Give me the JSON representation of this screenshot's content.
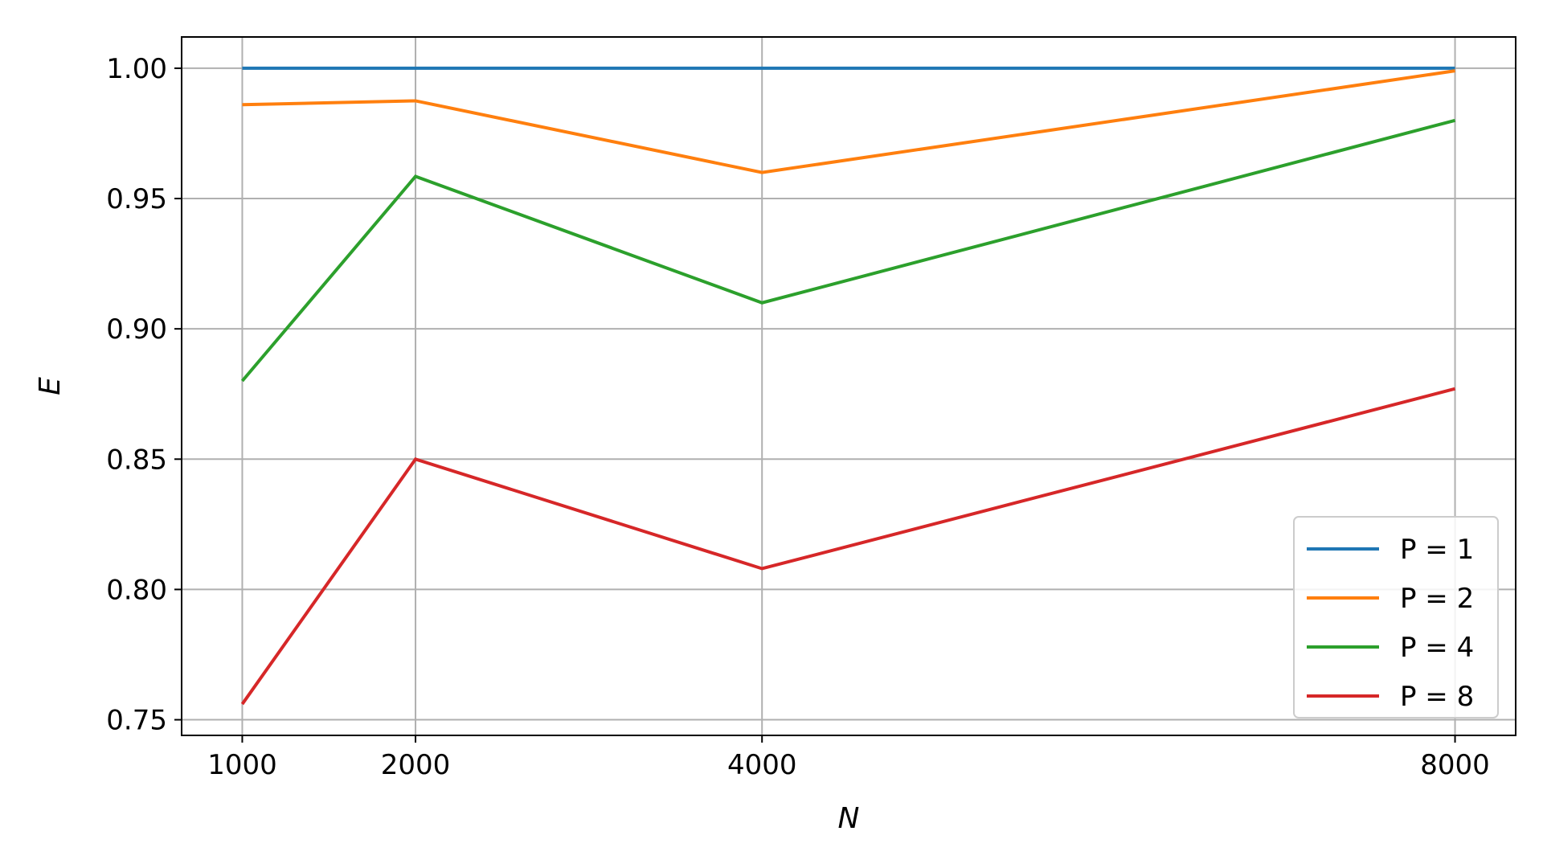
{
  "chart_data": {
    "type": "line",
    "title": "",
    "xlabel": "N",
    "ylabel": "E",
    "x": [
      1000,
      2000,
      4000,
      8000
    ],
    "xlim": [
      650,
      8350
    ],
    "ylim": [
      0.744,
      1.012
    ],
    "xticks": [
      1000,
      2000,
      4000,
      8000
    ],
    "xtick_labels": [
      "1000",
      "2000",
      "4000",
      "8000"
    ],
    "yticks": [
      0.75,
      0.8,
      0.85,
      0.9,
      0.95,
      1.0
    ],
    "ytick_labels": [
      "0.75",
      "0.80",
      "0.85",
      "0.90",
      "0.95",
      "1.00"
    ],
    "grid": true,
    "legend_position": "bottom-right",
    "series": [
      {
        "name": "P = 1",
        "color": "#1f77b4",
        "values": [
          1.0,
          1.0,
          1.0,
          1.0
        ]
      },
      {
        "name": "P = 2",
        "color": "#ff7f0e",
        "values": [
          0.986,
          0.9875,
          0.96,
          0.999
        ]
      },
      {
        "name": "P = 4",
        "color": "#2ca02c",
        "values": [
          0.88,
          0.9585,
          0.91,
          0.98
        ]
      },
      {
        "name": "P = 8",
        "color": "#d62728",
        "values": [
          0.756,
          0.85,
          0.808,
          0.877
        ]
      }
    ]
  }
}
